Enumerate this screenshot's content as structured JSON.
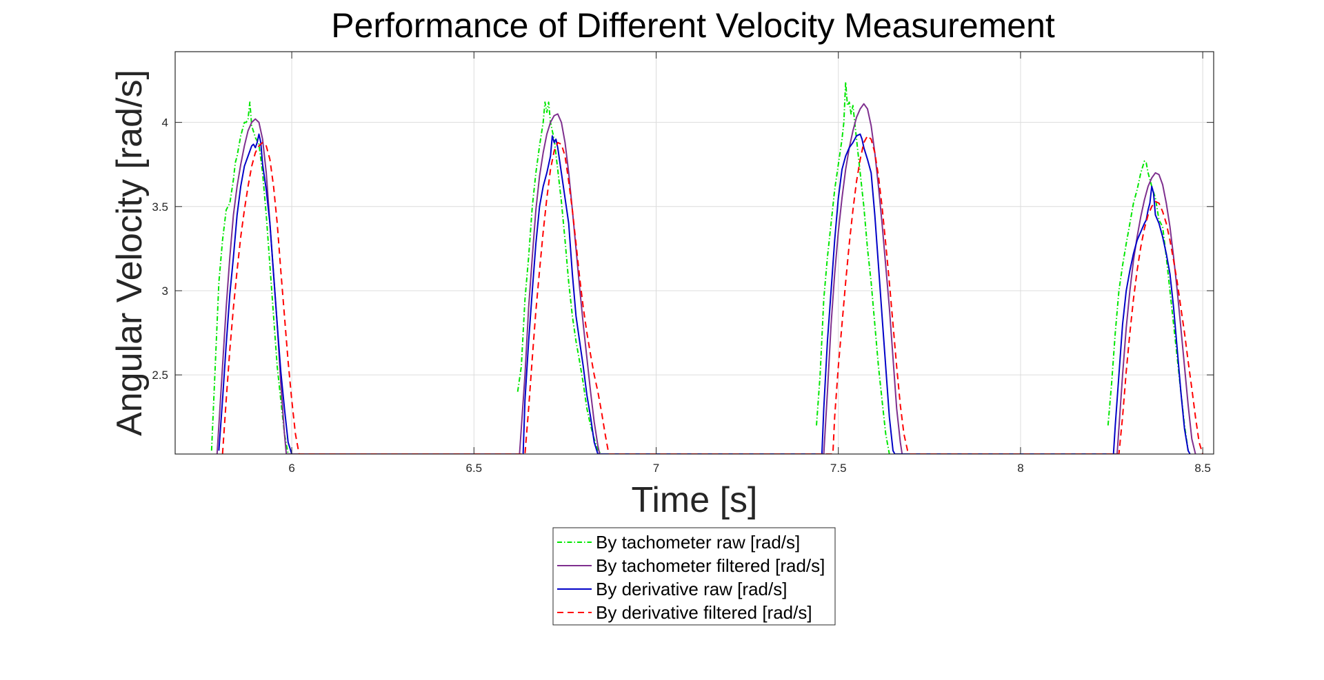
{
  "chart_data": {
    "type": "line",
    "title": "Performance of Different Velocity Measurement",
    "xlabel": "Time [s]",
    "ylabel": "Angular Velocity [rad/s]",
    "xlim": [
      5.68,
      8.53
    ],
    "ylim": [
      2.03,
      4.42
    ],
    "xticks": [
      6,
      6.5,
      7,
      7.5,
      8,
      8.5
    ],
    "yticks": [
      2.5,
      3,
      3.5,
      4
    ],
    "grid": true,
    "legend": "bottom-center outside",
    "series": [
      {
        "name": "By tachometer raw [rad/s]",
        "color": "#00e600",
        "dash": "dashdot",
        "x": [
          5.78,
          5.79,
          5.8,
          5.81,
          5.82,
          5.83,
          5.84,
          5.845,
          5.85,
          5.86,
          5.87,
          5.875,
          5.88,
          5.885,
          5.89,
          5.9,
          5.91,
          5.92,
          5.93,
          5.94,
          5.95,
          5.96,
          5.97,
          5.98,
          5.99,
          6.61,
          6.62,
          6.63,
          6.64,
          6.65,
          6.66,
          6.67,
          6.68,
          6.69,
          6.695,
          6.7,
          6.705,
          6.71,
          6.715,
          6.72,
          6.73,
          6.74,
          6.75,
          6.76,
          6.77,
          6.78,
          6.79,
          6.8,
          6.81,
          6.82,
          6.83,
          6.84,
          6.85,
          6.86,
          7.44,
          7.45,
          7.46,
          7.47,
          7.48,
          7.49,
          7.5,
          7.51,
          7.515,
          7.52,
          7.525,
          7.53,
          7.535,
          7.54,
          7.55,
          7.56,
          7.57,
          7.58,
          7.59,
          7.6,
          7.61,
          7.62,
          7.63,
          7.64,
          7.65,
          7.66,
          8.24,
          8.25,
          8.26,
          8.27,
          8.28,
          8.29,
          8.3,
          8.31,
          8.32,
          8.33,
          8.34,
          8.345,
          8.35,
          8.36,
          8.37,
          8.38,
          8.39,
          8.4,
          8.41,
          8.42,
          8.43,
          8.44,
          8.45,
          8.46,
          8.47
        ],
        "y": [
          2.05,
          2.55,
          3.05,
          3.3,
          3.48,
          3.52,
          3.66,
          3.76,
          3.8,
          3.92,
          4.0,
          4.0,
          4.02,
          4.12,
          3.98,
          3.91,
          3.87,
          3.7,
          3.45,
          3.15,
          2.85,
          2.55,
          2.35,
          2.15,
          2.03,
          null,
          2.4,
          2.55,
          2.95,
          3.2,
          3.5,
          3.7,
          3.86,
          4.0,
          4.12,
          4.06,
          4.12,
          4.0,
          3.95,
          3.9,
          3.72,
          3.53,
          3.3,
          3.05,
          2.85,
          2.7,
          2.58,
          2.45,
          2.3,
          2.2,
          2.12,
          2.05,
          2.03,
          null,
          2.2,
          2.5,
          2.95,
          3.2,
          3.4,
          3.6,
          3.75,
          3.9,
          4.0,
          4.24,
          4.1,
          4.12,
          4.05,
          4.1,
          3.9,
          3.7,
          3.5,
          3.25,
          3.05,
          2.8,
          2.55,
          2.35,
          2.15,
          2.03,
          null,
          null,
          2.2,
          2.45,
          2.75,
          3.0,
          3.15,
          3.28,
          3.4,
          3.52,
          3.6,
          3.7,
          3.77,
          3.76,
          3.7,
          3.62,
          3.55,
          3.42,
          3.38,
          3.2,
          3.0,
          2.8,
          2.6,
          2.4,
          2.2,
          2.05,
          null
        ]
      },
      {
        "name": "By tachometer filtered [rad/s]",
        "color": "#7e2f8e",
        "dash": "solid",
        "x": [
          5.795,
          5.81,
          5.82,
          5.83,
          5.84,
          5.85,
          5.86,
          5.87,
          5.88,
          5.89,
          5.9,
          5.91,
          5.92,
          5.93,
          5.94,
          5.95,
          5.96,
          5.97,
          5.98,
          5.985,
          6.625,
          6.64,
          6.65,
          6.66,
          6.67,
          6.68,
          6.69,
          6.7,
          6.71,
          6.72,
          6.73,
          6.74,
          6.75,
          6.76,
          6.77,
          6.78,
          6.79,
          6.8,
          6.81,
          6.82,
          6.83,
          6.84,
          6.845,
          7.46,
          7.47,
          7.48,
          7.49,
          7.5,
          7.51,
          7.52,
          7.53,
          7.54,
          7.55,
          7.56,
          7.57,
          7.58,
          7.59,
          7.6,
          7.61,
          7.62,
          7.63,
          7.64,
          7.65,
          7.66,
          7.67,
          7.675,
          8.265,
          8.28,
          8.29,
          8.3,
          8.31,
          8.32,
          8.33,
          8.34,
          8.35,
          8.36,
          8.37,
          8.38,
          8.39,
          8.4,
          8.41,
          8.42,
          8.43,
          8.44,
          8.45,
          8.46,
          8.47,
          8.48
        ],
        "y": [
          2.03,
          2.55,
          2.9,
          3.2,
          3.45,
          3.62,
          3.75,
          3.86,
          3.95,
          4.0,
          4.02,
          4.0,
          3.9,
          3.7,
          3.4,
          3.1,
          2.8,
          2.45,
          2.15,
          2.03,
          2.03,
          2.5,
          2.9,
          3.2,
          3.48,
          3.68,
          3.82,
          3.93,
          4.0,
          4.04,
          4.05,
          4.0,
          3.88,
          3.7,
          3.48,
          3.25,
          3.02,
          2.8,
          2.6,
          2.4,
          2.22,
          2.08,
          2.03,
          2.03,
          2.4,
          2.8,
          3.1,
          3.35,
          3.55,
          3.72,
          3.85,
          3.95,
          4.03,
          4.08,
          4.11,
          4.08,
          3.98,
          3.82,
          3.62,
          3.4,
          3.15,
          2.9,
          2.6,
          2.3,
          2.1,
          2.03,
          2.03,
          2.5,
          2.78,
          3.0,
          3.18,
          3.32,
          3.44,
          3.54,
          3.62,
          3.67,
          3.7,
          3.69,
          3.63,
          3.52,
          3.38,
          3.2,
          3.0,
          2.78,
          2.55,
          2.32,
          2.12,
          2.03
        ]
      },
      {
        "name": "By derivative raw [rad/s]",
        "color": "#0000c8",
        "dash": "solid",
        "x": [
          5.8,
          5.81,
          5.82,
          5.83,
          5.84,
          5.85,
          5.86,
          5.87,
          5.88,
          5.89,
          5.895,
          5.9,
          5.905,
          5.91,
          5.915,
          5.92,
          5.93,
          5.94,
          5.95,
          5.96,
          5.97,
          5.98,
          5.99,
          6.0,
          6.005,
          6.635,
          6.64,
          6.65,
          6.66,
          6.67,
          6.68,
          6.69,
          6.7,
          6.71,
          6.715,
          6.72,
          6.725,
          6.73,
          6.74,
          6.75,
          6.76,
          6.77,
          6.78,
          6.79,
          6.8,
          6.81,
          6.82,
          6.83,
          6.84,
          7.455,
          7.46,
          7.47,
          7.48,
          7.49,
          7.5,
          7.51,
          7.52,
          7.53,
          7.54,
          7.55,
          7.56,
          7.565,
          7.57,
          7.58,
          7.59,
          7.6,
          7.61,
          7.62,
          7.63,
          7.64,
          7.65,
          7.655,
          8.255,
          8.26,
          8.27,
          8.28,
          8.29,
          8.3,
          8.31,
          8.32,
          8.33,
          8.34,
          8.345,
          8.35,
          8.355,
          8.36,
          8.365,
          8.37,
          8.38,
          8.39,
          8.4,
          8.41,
          8.42,
          8.43,
          8.44,
          8.45,
          8.46,
          8.465
        ],
        "y": [
          2.05,
          2.35,
          2.68,
          2.98,
          3.2,
          3.45,
          3.62,
          3.74,
          3.8,
          3.86,
          3.87,
          3.85,
          3.88,
          3.93,
          3.88,
          3.75,
          3.6,
          3.4,
          3.1,
          2.8,
          2.52,
          2.3,
          2.1,
          2.03,
          null,
          2.03,
          2.35,
          2.7,
          3.0,
          3.28,
          3.5,
          3.62,
          3.7,
          3.8,
          3.92,
          3.88,
          3.9,
          3.85,
          3.7,
          3.55,
          3.4,
          3.1,
          2.85,
          2.7,
          2.55,
          2.38,
          2.25,
          2.1,
          2.03,
          2.03,
          2.3,
          2.7,
          3.0,
          3.3,
          3.55,
          3.72,
          3.8,
          3.85,
          3.88,
          3.92,
          3.93,
          3.9,
          3.85,
          3.78,
          3.7,
          3.45,
          3.15,
          2.85,
          2.55,
          2.25,
          2.05,
          2.03,
          2.03,
          2.2,
          2.5,
          2.8,
          3.0,
          3.12,
          3.22,
          3.3,
          3.35,
          3.4,
          3.42,
          3.48,
          3.52,
          3.62,
          3.58,
          3.45,
          3.4,
          3.32,
          3.22,
          3.1,
          2.9,
          2.65,
          2.4,
          2.18,
          2.05,
          2.03
        ]
      },
      {
        "name": "By derivative filtered [rad/s]",
        "color": "#ff0000",
        "dash": "dashed",
        "x": [
          5.81,
          5.82,
          5.83,
          5.84,
          5.85,
          5.86,
          5.87,
          5.88,
          5.89,
          5.9,
          5.91,
          5.92,
          5.93,
          5.94,
          5.95,
          5.96,
          5.97,
          5.98,
          5.99,
          6.0,
          6.01,
          6.02,
          6.64,
          6.65,
          6.66,
          6.67,
          6.68,
          6.69,
          6.7,
          6.71,
          6.72,
          6.73,
          6.74,
          6.75,
          6.76,
          6.77,
          6.78,
          6.79,
          6.8,
          6.81,
          6.82,
          6.83,
          6.84,
          6.85,
          6.86,
          6.87,
          7.485,
          7.49,
          7.5,
          7.51,
          7.52,
          7.53,
          7.54,
          7.55,
          7.56,
          7.57,
          7.58,
          7.59,
          7.6,
          7.61,
          7.62,
          7.63,
          7.64,
          7.65,
          7.66,
          7.67,
          7.68,
          7.69,
          7.695,
          8.27,
          8.28,
          8.29,
          8.3,
          8.31,
          8.32,
          8.33,
          8.34,
          8.35,
          8.36,
          8.37,
          8.38,
          8.39,
          8.4,
          8.41,
          8.42,
          8.43,
          8.44,
          8.45,
          8.46,
          8.47,
          8.48,
          8.49,
          8.5
        ],
        "y": [
          2.03,
          2.35,
          2.65,
          2.9,
          3.12,
          3.32,
          3.48,
          3.62,
          3.74,
          3.82,
          3.86,
          3.88,
          3.86,
          3.78,
          3.62,
          3.4,
          3.12,
          2.85,
          2.58,
          2.35,
          2.15,
          2.03,
          2.03,
          2.3,
          2.6,
          2.88,
          3.12,
          3.35,
          3.55,
          3.72,
          3.83,
          3.88,
          3.87,
          3.8,
          3.65,
          3.48,
          3.28,
          3.08,
          2.9,
          2.75,
          2.62,
          2.5,
          2.4,
          2.28,
          2.15,
          2.03,
          2.03,
          2.25,
          2.55,
          2.8,
          3.05,
          3.28,
          3.48,
          3.65,
          3.78,
          3.88,
          3.92,
          3.9,
          3.82,
          3.68,
          3.5,
          3.28,
          3.05,
          2.8,
          2.55,
          2.32,
          2.15,
          2.05,
          2.03,
          2.03,
          2.25,
          2.52,
          2.75,
          2.95,
          3.12,
          3.26,
          3.37,
          3.45,
          3.5,
          3.53,
          3.52,
          3.47,
          3.4,
          3.3,
          3.18,
          3.05,
          2.9,
          2.75,
          2.58,
          2.42,
          2.25,
          2.1,
          2.03
        ]
      }
    ]
  }
}
